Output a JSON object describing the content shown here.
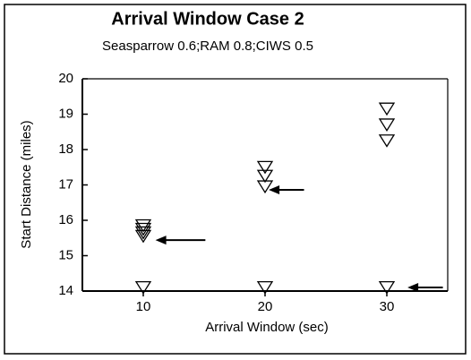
{
  "chart_data": {
    "type": "scatter",
    "title": "Arrival Window Case 2",
    "subtitle": "Seasparrow 0.6;RAM 0.8;CIWS 0.5",
    "x_label": "Arrival Window (sec)",
    "y_label": "Start Distance (miles)",
    "xlim": [
      5,
      35
    ],
    "xticks": [
      10,
      20,
      30
    ],
    "ylim": [
      14,
      20
    ],
    "yticks": [
      14,
      15,
      16,
      17,
      18,
      19,
      20
    ],
    "marker": "triangle-down",
    "color": "#000000",
    "x": [
      10,
      10,
      10,
      10,
      10,
      20,
      20,
      20,
      20,
      30,
      30,
      30,
      30
    ],
    "y": [
      15.85,
      15.75,
      15.65,
      15.55,
      14.1,
      17.5,
      17.25,
      16.95,
      14.1,
      19.15,
      18.7,
      18.25,
      14.1
    ],
    "arrows": [
      {
        "x_start": 15.1,
        "x_end": 11.0,
        "y": 15.44
      },
      {
        "x_start": 23.2,
        "x_end": 20.3,
        "y": 16.86
      },
      {
        "x_start": 34.6,
        "x_end": 31.7,
        "y": 14.1
      }
    ]
  }
}
